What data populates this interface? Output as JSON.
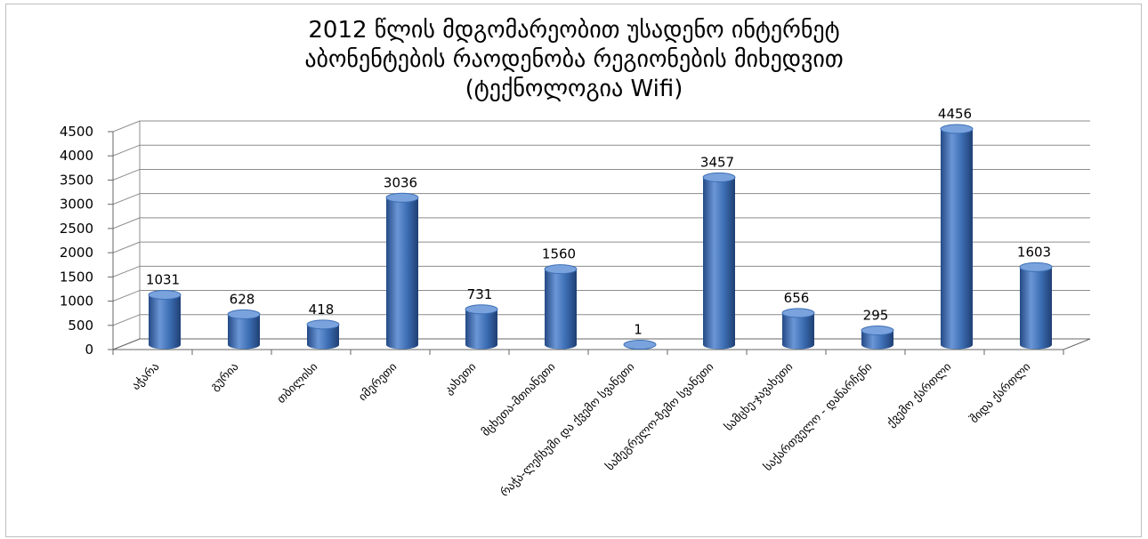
{
  "chart_data": {
    "type": "bar",
    "title_lines": [
      "2012 წლის მდგომარეობით უსადენო ინტერნეტ",
      "აბონენტების რაოდენობა რეგიონების მიხედვით",
      "(ტექნოლოგია Wifi)"
    ],
    "categories": [
      "აჭარა",
      "გურია",
      "თბილისი",
      "იმერეთი",
      "კახეთი",
      "მცხეთა-მთიანეთი",
      "რაჭა-ლეჩხუმი და ქვემო სვანეთი",
      "სამეგრელო-ზემო სვანეთი",
      "სამცხე-ჯავახეთი",
      "საქართველო - დანარჩენი",
      "ქვემო ქართლი",
      "შიდა ქართლი"
    ],
    "values": [
      1031,
      628,
      418,
      3036,
      731,
      1560,
      1,
      3457,
      656,
      295,
      4456,
      1603
    ],
    "ylim": [
      0,
      4500
    ],
    "yticks": [
      0,
      500,
      1000,
      1500,
      2000,
      2500,
      3000,
      3500,
      4000,
      4500
    ],
    "grid": true,
    "legend": "none",
    "colors": {
      "bar": "#3d6fb5",
      "bar_dark": "#244a85",
      "bar_light": "#7aa3dd",
      "grid": "#8c8c8c"
    }
  }
}
